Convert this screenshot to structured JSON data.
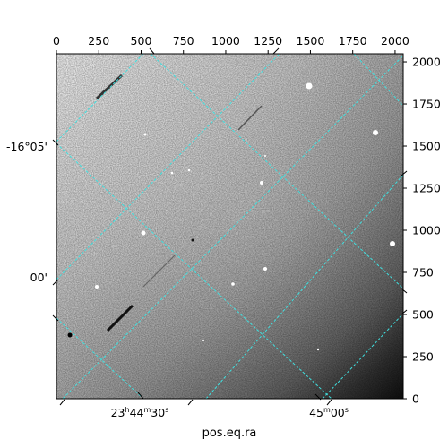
{
  "chart_data": {
    "type": "image",
    "xlabel": "pos.eq.ra",
    "pixel_axes": {
      "x_range": [
        0,
        2048
      ],
      "y_range": [
        0,
        2048
      ],
      "top_ticks": [
        0,
        250,
        500,
        750,
        1000,
        1250,
        1500,
        1750,
        2000
      ],
      "right_ticks": [
        0,
        250,
        500,
        750,
        1000,
        1250,
        1500,
        1750,
        2000
      ]
    },
    "world_axes": {
      "ra_ticks": [
        {
          "h": "23",
          "m": "44",
          "s": "30",
          "label_parts": [
            "23",
            "h",
            "44",
            "m",
            "30",
            "s"
          ]
        },
        {
          "m": "45",
          "s": "00",
          "label_parts": [
            "45",
            "m",
            "00",
            "s"
          ]
        }
      ],
      "dec_ticks": [
        "-16°05'",
        "00'"
      ]
    },
    "grid": {
      "on": true,
      "color": "#40e0e0",
      "style": "dashed"
    },
    "image": {
      "colormap": "gray",
      "background_gradient": "dark lower-right corner, bright upper-left"
    }
  }
}
